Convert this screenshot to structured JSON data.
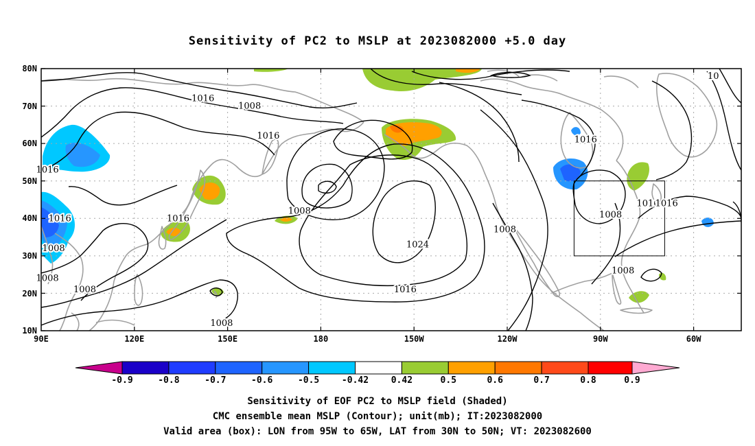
{
  "title": "Sensitivity of PC2 to MSLP at 2023082000 +5.0 day",
  "axes": {
    "lat_labels": [
      "80N",
      "70N",
      "60N",
      "50N",
      "40N",
      "30N",
      "20N",
      "10N"
    ],
    "lon_labels": [
      "90E",
      "120E",
      "150E",
      "180",
      "150W",
      "120W",
      "90W",
      "60W"
    ]
  },
  "contour_labels": [
    {
      "text": "1016",
      "lon": 92,
      "lat": 53
    },
    {
      "text": "1016",
      "lon": 96,
      "lat": 40
    },
    {
      "text": "1008",
      "lon": 94,
      "lat": 32
    },
    {
      "text": "1008",
      "lon": 104,
      "lat": 21
    },
    {
      "text": "1008",
      "lon": 92,
      "lat": 24
    },
    {
      "text": "1016",
      "lon": 134,
      "lat": 40
    },
    {
      "text": "1016",
      "lon": 142,
      "lat": 72
    },
    {
      "text": "1008",
      "lon": 157,
      "lat": 70
    },
    {
      "text": "1016",
      "lon": 163,
      "lat": 62
    },
    {
      "text": "1008",
      "lon": 173,
      "lat": 42
    },
    {
      "text": "1008",
      "lon": 148,
      "lat": 12
    },
    {
      "text": "1024",
      "lon": -149,
      "lat": 33
    },
    {
      "text": "1016",
      "lon": -153,
      "lat": 21
    },
    {
      "text": "1008",
      "lon": -121,
      "lat": 37
    },
    {
      "text": "1016",
      "lon": -95,
      "lat": 61
    },
    {
      "text": "1008",
      "lon": -87,
      "lat": 41
    },
    {
      "text": "1008",
      "lon": -83,
      "lat": 26
    },
    {
      "text": "1016",
      "lon": -75,
      "lat": 44
    },
    {
      "text": "1016",
      "lon": -69,
      "lat": 44
    },
    {
      "text": "10",
      "lon": -54,
      "lat": 78
    }
  ],
  "colorbar": {
    "labels": [
      "-0.9",
      "-0.8",
      "-0.7",
      "-0.6",
      "-0.5",
      "-0.42",
      "0.42",
      "0.5",
      "0.6",
      "0.7",
      "0.8",
      "0.9"
    ],
    "colors": [
      "#1a00c8",
      "#1f3cff",
      "#1e64ff",
      "#2696ff",
      "#00c8ff",
      "#ffffff",
      "#99cc33",
      "#ffa000",
      "#ff7800",
      "#ff4a1a",
      "#ff0000"
    ],
    "low_end_color": "#c8008c",
    "high_end_color": "#ffaad2"
  },
  "valid_box": {
    "lon_min": -95,
    "lon_max": -65,
    "lat_min": 30,
    "lat_max": 50
  },
  "footer": {
    "line1": "Sensitivity of EOF PC2 to MSLP field (Shaded)",
    "line2": "CMC ensemble mean MSLP (Contour); unit(mb); IT:2023082000",
    "line3": "Valid area (box): LON from 95W to 65W, LAT from 30N to 50N; VT: 2023082600"
  }
}
